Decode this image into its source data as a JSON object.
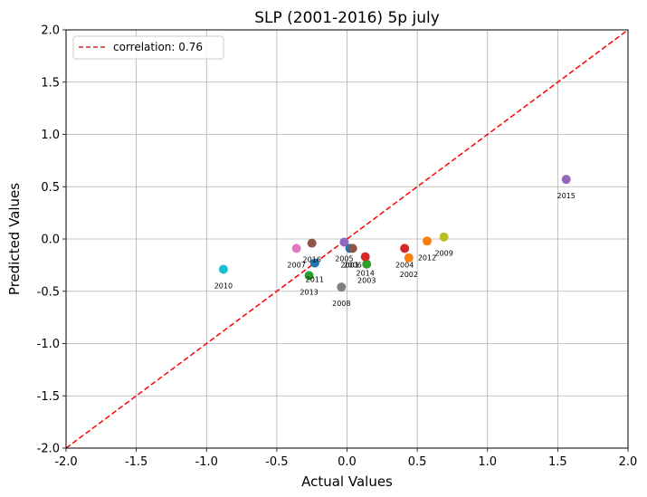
{
  "chart_data": {
    "type": "scatter",
    "title": "SLP (2001-2016) 5p july",
    "xlabel": "Actual Values",
    "ylabel": "Predicted Values",
    "xlim": [
      -2.0,
      2.0
    ],
    "ylim": [
      -2.0,
      2.0
    ],
    "xticks": [
      "-2.0",
      "-1.5",
      "-1.0",
      "-0.5",
      "0.0",
      "0.5",
      "1.0",
      "1.5",
      "2.0"
    ],
    "yticks": [
      "-2.0",
      "-1.5",
      "-1.0",
      "-0.5",
      "0.0",
      "0.5",
      "1.0",
      "1.5",
      "2.0"
    ],
    "grid": true,
    "legend": {
      "position": "top-left",
      "label": "correlation: 0.76",
      "line_color": "#d62728",
      "line_style": "dashed"
    },
    "reference_line": {
      "x": [
        -2.0,
        2.0
      ],
      "y": [
        -2.0,
        2.0
      ],
      "color": "#ff0000"
    },
    "points": [
      {
        "label": "2001",
        "x": 0.02,
        "y": -0.09,
        "color": "#1f77b4"
      },
      {
        "label": "2002",
        "x": 0.44,
        "y": -0.18,
        "color": "#ff7f0e"
      },
      {
        "label": "2003",
        "x": 0.14,
        "y": -0.24,
        "color": "#2ca02c"
      },
      {
        "label": "2004",
        "x": 0.41,
        "y": -0.09,
        "color": "#d62728"
      },
      {
        "label": "2005",
        "x": -0.02,
        "y": -0.03,
        "color": "#9467bd"
      },
      {
        "label": "2006",
        "x": 0.04,
        "y": -0.09,
        "color": "#8c564b"
      },
      {
        "label": "2007",
        "x": -0.36,
        "y": -0.09,
        "color": "#e377c2"
      },
      {
        "label": "2008",
        "x": -0.04,
        "y": -0.46,
        "color": "#7f7f7f"
      },
      {
        "label": "2009",
        "x": 0.69,
        "y": 0.02,
        "color": "#bcbd22"
      },
      {
        "label": "2010",
        "x": -0.88,
        "y": -0.29,
        "color": "#17becf"
      },
      {
        "label": "2011",
        "x": -0.23,
        "y": -0.23,
        "color": "#1f77b4"
      },
      {
        "label": "2012",
        "x": 0.57,
        "y": -0.02,
        "color": "#ff7f0e"
      },
      {
        "label": "2013",
        "x": -0.27,
        "y": -0.35,
        "color": "#2ca02c"
      },
      {
        "label": "2014",
        "x": 0.13,
        "y": -0.17,
        "color": "#d62728"
      },
      {
        "label": "2015",
        "x": 1.56,
        "y": 0.57,
        "color": "#9467bd"
      },
      {
        "label": "2016",
        "x": -0.25,
        "y": -0.04,
        "color": "#8c564b"
      }
    ]
  }
}
